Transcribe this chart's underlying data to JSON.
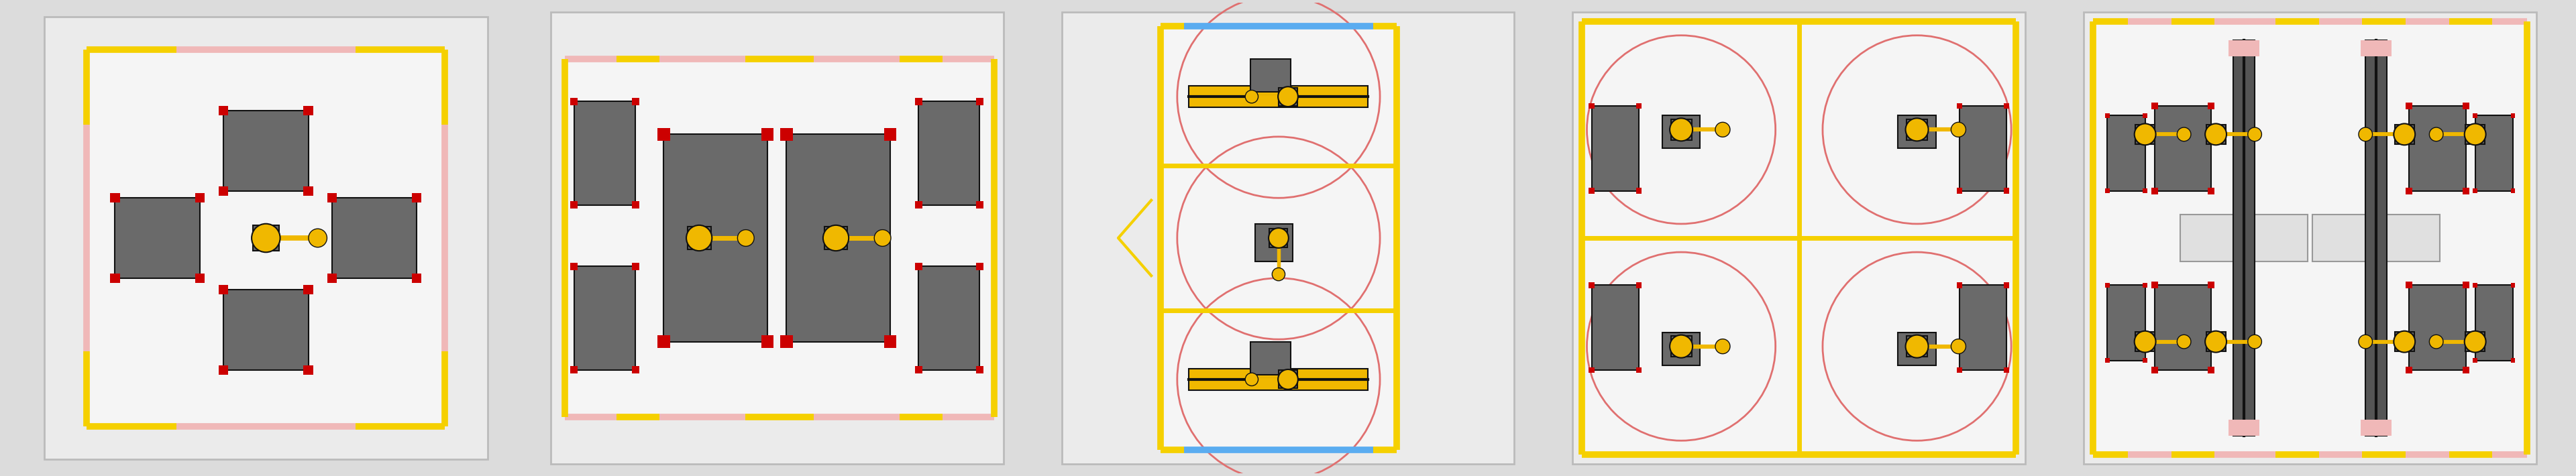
{
  "bg_outer": "#dcdcdc",
  "cell_bg": "#ebebeb",
  "inner_bg": "#f5f5f5",
  "fence_yellow": "#f5d000",
  "fence_pink": "#f0b8b8",
  "fence_blue": "#5aacf0",
  "machine_gray": "#6a6a6a",
  "machine_light": "#909090",
  "red_dot": "#cc0000",
  "circle_red": "#e07070",
  "robot_gold": "#f0b800",
  "robot_orange": "#e8a000",
  "black": "#111111",
  "white_box": "#e8e8e8",
  "pink_box": "#f0b8b8",
  "dark_gray_rail": "#555555",
  "fence_lw": 7,
  "inner_lw": 2
}
